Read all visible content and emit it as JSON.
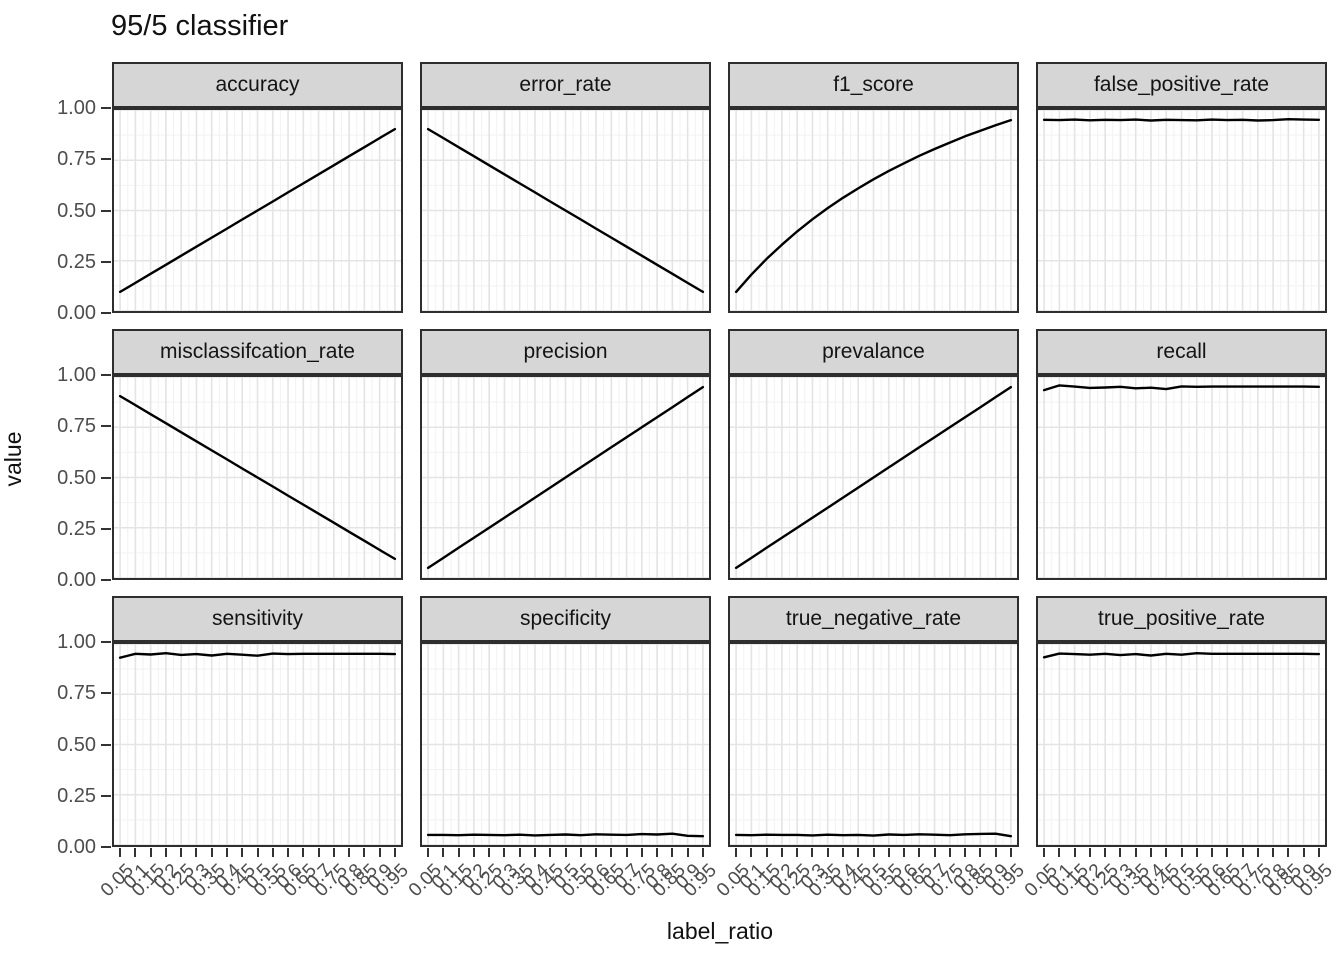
{
  "title": "95/5 classifier",
  "chart_data": {
    "type": "line",
    "title": "95/5 classifier",
    "xlabel": "label_ratio",
    "ylabel": "value",
    "legend": "none",
    "grid": "major+minor",
    "ylim": [
      0,
      1
    ],
    "x": [
      0.05,
      0.1,
      0.15,
      0.2,
      0.25,
      0.3,
      0.35,
      0.4,
      0.45,
      0.5,
      0.55,
      0.6,
      0.65,
      0.7,
      0.75,
      0.8,
      0.85,
      0.9,
      0.95
    ],
    "x_tick_labels": [
      "0.05",
      "0.1",
      "0.15",
      "0.2",
      "0.25",
      "0.3",
      "0.35",
      "0.4",
      "0.45",
      "0.5",
      "0.55",
      "0.6",
      "0.65",
      "0.7",
      "0.75",
      "0.8",
      "0.85",
      "0.9",
      "0.95"
    ],
    "y_ticks": [
      0,
      0.25,
      0.5,
      0.75,
      1
    ],
    "y_tick_labels": [
      "0.00",
      "0.25",
      "0.50",
      "0.75",
      "1.00"
    ],
    "facets": [
      {
        "label": "accuracy",
        "values": [
          0.095,
          0.14,
          0.185,
          0.23,
          0.275,
          0.32,
          0.365,
          0.41,
          0.455,
          0.5,
          0.545,
          0.59,
          0.635,
          0.68,
          0.725,
          0.77,
          0.815,
          0.86,
          0.905
        ]
      },
      {
        "label": "error_rate",
        "values": [
          0.905,
          0.86,
          0.815,
          0.77,
          0.725,
          0.68,
          0.635,
          0.59,
          0.545,
          0.5,
          0.455,
          0.41,
          0.365,
          0.32,
          0.275,
          0.23,
          0.185,
          0.14,
          0.095
        ]
      },
      {
        "label": "f1_score",
        "values": [
          0.095,
          0.181,
          0.259,
          0.33,
          0.396,
          0.456,
          0.512,
          0.563,
          0.61,
          0.655,
          0.697,
          0.735,
          0.772,
          0.806,
          0.838,
          0.869,
          0.897,
          0.924,
          0.95
        ]
      },
      {
        "label": "false_positive_rate",
        "values": [
          0.951,
          0.95,
          0.952,
          0.949,
          0.951,
          0.95,
          0.952,
          0.948,
          0.951,
          0.95,
          0.949,
          0.952,
          0.95,
          0.951,
          0.948,
          0.95,
          0.954,
          0.952,
          0.951
        ]
      },
      {
        "label": "misclassifcation_rate",
        "values": [
          0.905,
          0.86,
          0.815,
          0.77,
          0.725,
          0.68,
          0.635,
          0.59,
          0.545,
          0.5,
          0.455,
          0.41,
          0.365,
          0.32,
          0.275,
          0.23,
          0.185,
          0.14,
          0.095
        ]
      },
      {
        "label": "precision",
        "values": [
          0.05,
          0.1,
          0.15,
          0.2,
          0.25,
          0.3,
          0.35,
          0.4,
          0.45,
          0.5,
          0.55,
          0.6,
          0.65,
          0.7,
          0.75,
          0.8,
          0.85,
          0.9,
          0.95
        ]
      },
      {
        "label": "prevalance",
        "values": [
          0.05,
          0.1,
          0.15,
          0.2,
          0.25,
          0.3,
          0.35,
          0.4,
          0.45,
          0.5,
          0.55,
          0.6,
          0.65,
          0.7,
          0.75,
          0.8,
          0.85,
          0.9,
          0.95
        ]
      },
      {
        "label": "recall",
        "values": [
          0.935,
          0.958,
          0.952,
          0.946,
          0.948,
          0.951,
          0.944,
          0.947,
          0.94,
          0.953,
          0.951,
          0.952,
          0.952,
          0.952,
          0.952,
          0.952,
          0.952,
          0.952,
          0.951
        ]
      },
      {
        "label": "sensitivity",
        "values": [
          0.932,
          0.951,
          0.948,
          0.954,
          0.946,
          0.95,
          0.943,
          0.951,
          0.947,
          0.942,
          0.952,
          0.95,
          0.951,
          0.951,
          0.951,
          0.951,
          0.951,
          0.951,
          0.95
        ]
      },
      {
        "label": "specificity",
        "values": [
          0.05,
          0.05,
          0.049,
          0.051,
          0.05,
          0.049,
          0.051,
          0.048,
          0.05,
          0.052,
          0.049,
          0.053,
          0.051,
          0.05,
          0.054,
          0.052,
          0.056,
          0.046,
          0.044
        ]
      },
      {
        "label": "true_negative_rate",
        "values": [
          0.05,
          0.049,
          0.051,
          0.05,
          0.05,
          0.048,
          0.051,
          0.049,
          0.05,
          0.047,
          0.052,
          0.05,
          0.053,
          0.051,
          0.049,
          0.053,
          0.055,
          0.056,
          0.044
        ]
      },
      {
        "label": "true_positive_rate",
        "values": [
          0.934,
          0.952,
          0.95,
          0.947,
          0.951,
          0.945,
          0.95,
          0.943,
          0.951,
          0.947,
          0.954,
          0.951,
          0.951,
          0.951,
          0.951,
          0.951,
          0.951,
          0.951,
          0.95
        ]
      }
    ],
    "colors": {
      "line": "#000000",
      "strip_fill": "#d6d6d6",
      "panel_border": "#2e2e2e",
      "grid_major": "#e4e4e4",
      "grid_minor": "#f2f2f2",
      "axis_text": "#4d4d4d",
      "title_text": "#111111"
    }
  }
}
